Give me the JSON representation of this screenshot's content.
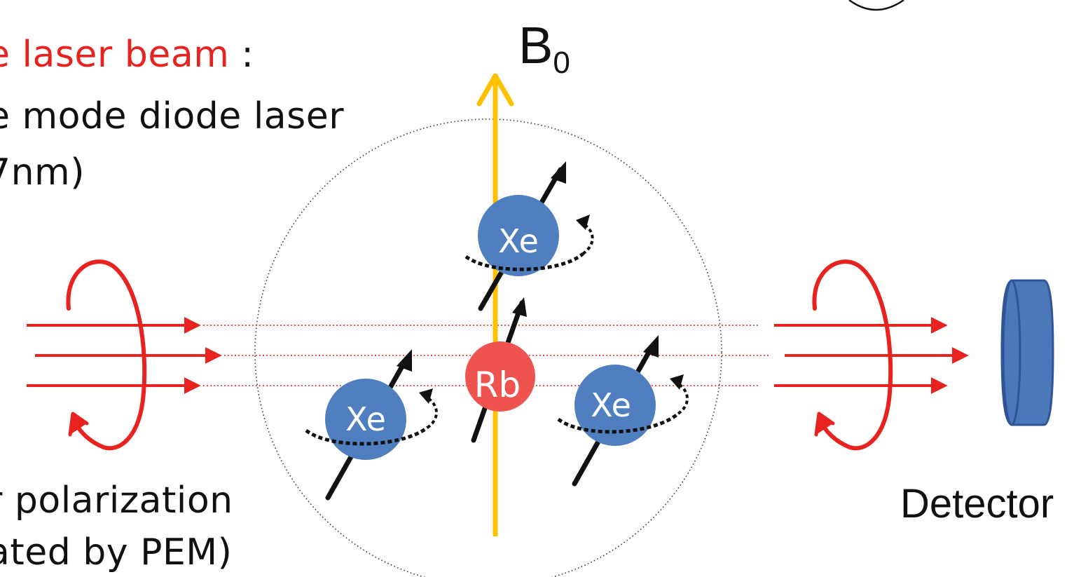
{
  "labels": {
    "laser_beam_title": "e laser beam",
    "laser_beam_colon": " :",
    "diode_line": "e mode diode laser",
    "wavelength_line": "7nm)",
    "polarization_line": "r polarization",
    "pem_line": "ated by PEM)",
    "detector": "Detector",
    "field_symbol": "B",
    "field_subscript": "0"
  },
  "particles": {
    "xe_label": "Xe",
    "rb_label": "Rb"
  },
  "colors": {
    "laser_red": "#e8231f",
    "xe_blue": "#4f7fbe",
    "rb_red": "#ef5350",
    "field_yellow": "#ffc000",
    "detector_blue": "#4a78b8",
    "detector_stroke": "#2f5597"
  }
}
